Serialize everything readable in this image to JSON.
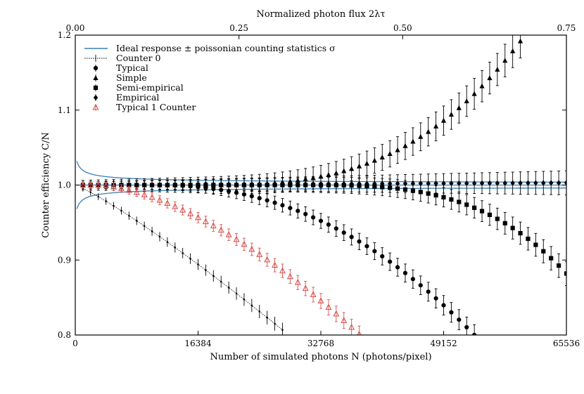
{
  "chart_data": {
    "type": "scatter",
    "xlabel": "Number of simulated photons N (photons/pixel)",
    "ylabel": "Counter efficiency C/N",
    "top_xlabel": "Normalized photon flux 2λτ",
    "xlim": [
      0,
      65536
    ],
    "ylim": [
      0.8,
      1.2
    ],
    "x_ticks": [
      0,
      16384,
      32768,
      49152,
      65536
    ],
    "x_tick_labels": [
      "0",
      "16384",
      "32768",
      "49152",
      "65536"
    ],
    "y_ticks": [
      0.8,
      0.9,
      1.0,
      1.1,
      1.2
    ],
    "y_tick_labels": [
      "0.8",
      "0.9",
      "1.0",
      "1.1",
      "1.2"
    ],
    "top_x_ticks": [
      0,
      0.25,
      0.5,
      0.75
    ],
    "top_x_tick_labels": [
      "0.00",
      "0.25",
      "0.50",
      "0.75"
    ],
    "top_xlim": [
      0,
      0.75
    ],
    "legend_position": "top-left",
    "grid": false,
    "series": [
      {
        "name": "Ideal response ± poissonian counting statistics σ",
        "style": "band",
        "color": "#3a7fb5",
        "x_start": 200,
        "x_end": 65536,
        "center": 1.0,
        "sigma_scale": 0.2
      },
      {
        "name": "Counter 0",
        "style": "dotted",
        "color": "#000000",
        "x_start": 0,
        "x_end": 28500,
        "y0": 1.0,
        "y1": 0.8,
        "curve": 1.15
      },
      {
        "name": "Typical",
        "style": "circle",
        "color": "#000000",
        "x_start": 1024,
        "x_end": 53248,
        "step": 1024,
        "y0": 1.0,
        "y1": 0.8,
        "curve": 2.2,
        "delay": 0.18
      },
      {
        "name": "Simple",
        "style": "triangle",
        "color": "#000000",
        "x_start": 1024,
        "x_end": 60000,
        "step": 1024,
        "y0": 1.0,
        "y1": 1.2,
        "curve": 3.0,
        "delay": 0.25
      },
      {
        "name": "Semi-empirical",
        "style": "square",
        "color": "#000000",
        "x_start": 1024,
        "x_end": 65536,
        "step": 1024,
        "y0": 1.0,
        "y1": 0.882,
        "curve": 3.2,
        "delay": 0.45
      },
      {
        "name": "Empirical",
        "style": "diamond",
        "color": "#000000",
        "x_start": 1024,
        "x_end": 65536,
        "step": 1024,
        "y0": 1.0,
        "y1": 1.003,
        "curve": 1.0,
        "delay": 0.0
      },
      {
        "name": "Typical 1 Counter",
        "style": "open-triangle",
        "color": "#d9534f",
        "x_start": 1024,
        "x_end": 38000,
        "step": 1024,
        "y0": 1.0,
        "y1": 0.8,
        "curve": 1.6,
        "delay": 0.05
      }
    ]
  }
}
